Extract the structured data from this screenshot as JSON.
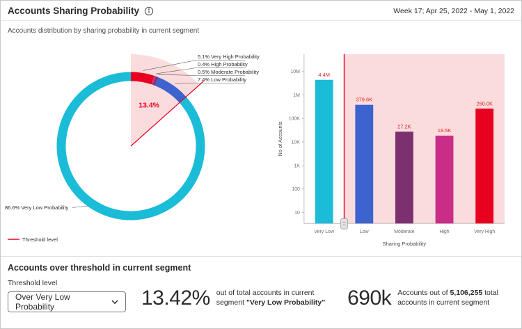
{
  "header": {
    "title": "Accounts Sharing Probability",
    "week_label": "Week 17; Apr 25, 2022 - May 1, 2022",
    "subtitle": "Accounts distribution by sharing probability in current segment"
  },
  "colors": {
    "very_low": "#1BBCD7",
    "low": "#3D63CE",
    "moderate": "#7D3070",
    "high": "#C92D87",
    "very_high": "#E8001F",
    "threshold": "#E8001F",
    "threshold_fill": "#FADCDD",
    "value_label": "#DF2220"
  },
  "chart_data": [
    {
      "type": "pie",
      "subtype": "donut",
      "unit": "%",
      "slices": [
        {
          "label": "Very High Probability",
          "value": 5.1,
          "color_key": "very_high",
          "in_threshold": true
        },
        {
          "label": "High Probability",
          "value": 0.4,
          "color_key": "high",
          "in_threshold": true
        },
        {
          "label": "Moderate Probability",
          "value": 0.5,
          "color_key": "moderate",
          "in_threshold": true
        },
        {
          "label": "Low Probability",
          "value": 7.4,
          "color_key": "low",
          "in_threshold": true
        },
        {
          "label": "Very Low Probability",
          "value": 86.6,
          "color_key": "very_low",
          "in_threshold": false
        }
      ],
      "threshold_total_label": "13.4%",
      "legend": [
        {
          "label": "Threshold level",
          "color_key": "threshold"
        }
      ]
    },
    {
      "type": "bar",
      "categories": [
        "Very Low",
        "Low",
        "Moderate",
        "High",
        "Very High"
      ],
      "values": [
        4400000,
        379600,
        27200,
        18500,
        260000
      ],
      "value_labels": [
        "4.4M",
        "379.6K",
        "27.2K",
        "18.5K",
        "260.0K"
      ],
      "color_keys": [
        "very_low",
        "low",
        "moderate",
        "high",
        "very_high"
      ],
      "xlabel": "Sharing Probability",
      "ylabel": "No of Accounts",
      "yscale": "log",
      "yticks": [
        "10M",
        "1M",
        "100K",
        "10K",
        "1K",
        "100",
        "10"
      ],
      "threshold_after_index": 0
    }
  ],
  "footer": {
    "section_title": "Accounts over threshold in current segment",
    "threshold_label": "Threshold level",
    "dropdown_value": "Over Very Low Probability",
    "pct_value": "13.42%",
    "pct_desc_prefix": "out of total accounts in current segment ",
    "pct_desc_bold": "\"Very Low Probability\"",
    "count_value": "690k",
    "count_desc_prefix": "Accounts out of ",
    "count_desc_bold": "5,106,255",
    "count_desc_suffix": " total accounts in current segment"
  }
}
